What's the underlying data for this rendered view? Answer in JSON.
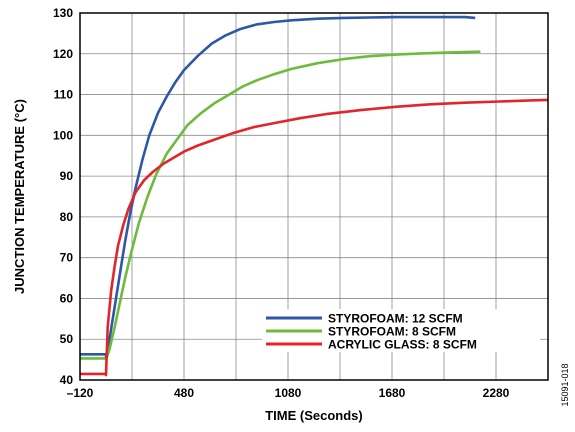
{
  "chart_data": {
    "type": "line",
    "xlabel": "TIME (Seconds)",
    "ylabel": "JUNCTION TEMPERATURE (°C)",
    "xlim": [
      -120,
      2580
    ],
    "ylim": [
      40,
      130
    ],
    "xticks": [
      -120,
      480,
      1080,
      1680,
      2280
    ],
    "xtick_labels": [
      "–120",
      "480",
      "1080",
      "1680",
      "2280"
    ],
    "yticks": [
      40,
      50,
      60,
      70,
      80,
      90,
      100,
      110,
      120,
      130
    ],
    "grid": true,
    "legend_position": "bottom-right",
    "side_label": "15091-018",
    "series": [
      {
        "name": "STYROFOAM: 12 SCFM",
        "color": "#2e57a6",
        "x": [
          -120,
          30,
          30,
          50,
          80,
          110,
          140,
          170,
          200,
          240,
          280,
          330,
          380,
          430,
          480,
          560,
          640,
          720,
          800,
          900,
          1000,
          1100,
          1250,
          1400,
          1550,
          1700,
          1850,
          2000,
          2100,
          2160
        ],
        "y": [
          46.3,
          46.3,
          45.8,
          50,
          58,
          66,
          74,
          81,
          87,
          94,
          100,
          105.5,
          109.5,
          113,
          116,
          119.5,
          122.5,
          124.5,
          126,
          127.2,
          127.8,
          128.2,
          128.6,
          128.8,
          128.9,
          129,
          129,
          129,
          129,
          128.8
        ]
      },
      {
        "name": "STYROFOAM: 8 SCFM",
        "color": "#6cbb3c",
        "x": [
          -120,
          30,
          30,
          50,
          80,
          110,
          140,
          180,
          220,
          270,
          320,
          380,
          440,
          500,
          580,
          660,
          740,
          820,
          900,
          1000,
          1100,
          1250,
          1400,
          1550,
          1700,
          1850,
          2000,
          2100,
          2190
        ],
        "y": [
          45.3,
          45.3,
          45,
          47.5,
          53,
          59,
          65,
          72,
          78.5,
          85,
          90.5,
          95.5,
          99,
          102.5,
          105.5,
          108,
          110,
          112,
          113.5,
          115,
          116.3,
          117.7,
          118.7,
          119.4,
          119.8,
          120.1,
          120.3,
          120.4,
          120.5
        ]
      },
      {
        "name": "ACRYLIC GLASS: 8 SCFM",
        "color": "#e0252b",
        "x": [
          -120,
          30,
          30,
          40,
          60,
          80,
          100,
          130,
          160,
          200,
          250,
          300,
          360,
          420,
          480,
          560,
          660,
          760,
          880,
          1000,
          1150,
          1300,
          1500,
          1700,
          1900,
          2100,
          2300,
          2500,
          2580
        ],
        "y": [
          41.5,
          41.5,
          41.2,
          53,
          62,
          68,
          73,
          78,
          82,
          86,
          89,
          91,
          93,
          94.5,
          96,
          97.5,
          99,
          100.5,
          102,
          103,
          104.2,
          105.2,
          106.2,
          107,
          107.6,
          108,
          108.3,
          108.6,
          108.7
        ]
      }
    ]
  }
}
